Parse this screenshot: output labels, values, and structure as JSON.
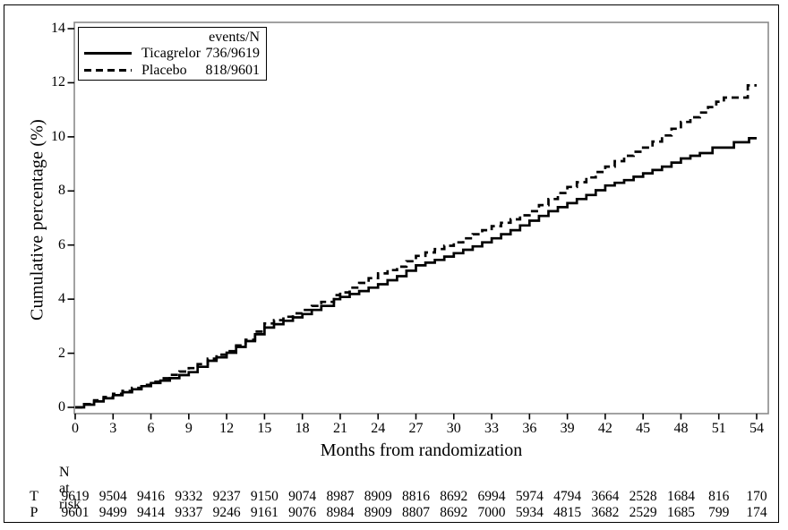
{
  "colors": {
    "ink": "#000000",
    "frame": "#8a8a8a",
    "background": "#ffffff"
  },
  "chart_data": {
    "type": "line",
    "title": "",
    "xlabel": "Months from randomization",
    "ylabel": "Cumulative percentage (%)",
    "xlim": [
      0,
      54
    ],
    "ylim": [
      0,
      14
    ],
    "xticks": [
      0,
      3,
      6,
      9,
      12,
      15,
      18,
      21,
      24,
      27,
      30,
      33,
      36,
      39,
      42,
      45,
      48,
      51,
      54
    ],
    "yticks": [
      0,
      2,
      4,
      6,
      8,
      10,
      12,
      14
    ],
    "grid": false,
    "legend": {
      "position": "top-left",
      "header": "events/N",
      "entries": [
        {
          "label": "Ticagrelor",
          "value": "736/9619",
          "style": "solid"
        },
        {
          "label": "Placebo",
          "value": "818/9601",
          "style": "dashed"
        }
      ]
    },
    "series": [
      {
        "name": "Ticagrelor",
        "line": "solid",
        "color": "#000000",
        "points": [
          [
            0,
            0
          ],
          [
            0.7,
            0.1
          ],
          [
            1.5,
            0.22
          ],
          [
            3,
            0.45
          ],
          [
            4.5,
            0.67
          ],
          [
            6,
            0.9
          ],
          [
            7.5,
            1.08
          ],
          [
            9,
            1.3
          ],
          [
            9.7,
            1.5
          ],
          [
            10.5,
            1.72
          ],
          [
            11.2,
            1.85
          ],
          [
            12,
            2.02
          ],
          [
            13.5,
            2.45
          ],
          [
            15,
            2.95
          ],
          [
            16.5,
            3.2
          ],
          [
            18,
            3.45
          ],
          [
            19.5,
            3.75
          ],
          [
            20.5,
            4.0
          ],
          [
            21,
            4.08
          ],
          [
            22.5,
            4.3
          ],
          [
            24,
            4.55
          ],
          [
            25.5,
            4.85
          ],
          [
            27,
            5.25
          ],
          [
            28.5,
            5.45
          ],
          [
            30,
            5.7
          ],
          [
            31.5,
            5.95
          ],
          [
            33,
            6.25
          ],
          [
            34.5,
            6.55
          ],
          [
            36,
            6.9
          ],
          [
            37.5,
            7.25
          ],
          [
            39,
            7.55
          ],
          [
            40.5,
            7.85
          ],
          [
            42,
            8.2
          ],
          [
            43.5,
            8.4
          ],
          [
            45,
            8.65
          ],
          [
            46.5,
            8.9
          ],
          [
            48,
            9.2
          ],
          [
            49.5,
            9.4
          ],
          [
            50.5,
            9.6
          ],
          [
            52,
            9.6
          ],
          [
            52.2,
            9.8
          ],
          [
            53.2,
            9.8
          ],
          [
            53.4,
            9.95
          ],
          [
            54,
            9.95
          ]
        ]
      },
      {
        "name": "Placebo",
        "line": "dashed",
        "color": "#000000",
        "points": [
          [
            0,
            0
          ],
          [
            0.7,
            0.12
          ],
          [
            1.5,
            0.26
          ],
          [
            3,
            0.5
          ],
          [
            4.5,
            0.72
          ],
          [
            6,
            0.95
          ],
          [
            7.5,
            1.2
          ],
          [
            9,
            1.45
          ],
          [
            9.7,
            1.6
          ],
          [
            10.5,
            1.8
          ],
          [
            11.2,
            1.95
          ],
          [
            12,
            2.08
          ],
          [
            13.5,
            2.5
          ],
          [
            15,
            3.1
          ],
          [
            16.5,
            3.35
          ],
          [
            18,
            3.6
          ],
          [
            19.5,
            3.9
          ],
          [
            20.5,
            4.15
          ],
          [
            21,
            4.25
          ],
          [
            22.5,
            4.6
          ],
          [
            24,
            4.95
          ],
          [
            25.5,
            5.2
          ],
          [
            27,
            5.6
          ],
          [
            28.5,
            5.85
          ],
          [
            30,
            6.1
          ],
          [
            31.5,
            6.4
          ],
          [
            33,
            6.7
          ],
          [
            34.5,
            6.95
          ],
          [
            36,
            7.25
          ],
          [
            37.5,
            7.7
          ],
          [
            39,
            8.15
          ],
          [
            40.5,
            8.5
          ],
          [
            42,
            8.9
          ],
          [
            43.5,
            9.3
          ],
          [
            45,
            9.6
          ],
          [
            46.5,
            10.05
          ],
          [
            48,
            10.55
          ],
          [
            49.5,
            10.9
          ],
          [
            50.8,
            11.3
          ],
          [
            51.4,
            11.45
          ],
          [
            53,
            11.45
          ],
          [
            53.3,
            11.9
          ],
          [
            54,
            11.9
          ]
        ]
      }
    ],
    "risk_table": {
      "title": "N at risk",
      "rows": [
        {
          "label": "T",
          "values": [
            9619,
            9504,
            9416,
            9332,
            9237,
            9150,
            9074,
            8987,
            8909,
            8816,
            8692,
            6994,
            5974,
            4794,
            3664,
            2528,
            1684,
            816,
            170
          ]
        },
        {
          "label": "P",
          "values": [
            9601,
            9499,
            9414,
            9337,
            9246,
            9161,
            9076,
            8984,
            8909,
            8807,
            8692,
            7000,
            5934,
            4815,
            3682,
            2529,
            1685,
            799,
            174
          ]
        }
      ]
    }
  }
}
